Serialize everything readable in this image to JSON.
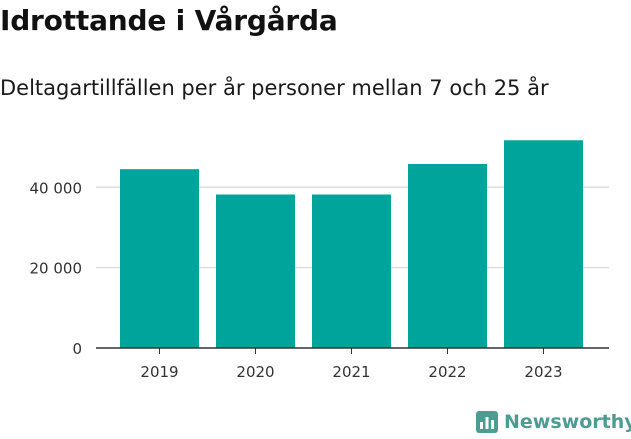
{
  "header": {
    "title": "Idrottande i Vårgårda",
    "subtitle": "Deltagartillfällen per år personer mellan 7 och 25 år"
  },
  "branding": {
    "name": "Newsworthy",
    "icon": "bar-chart-logo-icon",
    "color": "#4e9c91"
  },
  "colors": {
    "bar": "#00a49a",
    "grid": "#dddddd",
    "axis": "#333333",
    "text": "#333333"
  },
  "chart_data": {
    "type": "bar",
    "title": "Idrottande i Vårgårda",
    "subtitle": "Deltagartillfällen per år personer mellan 7 och 25 år",
    "xlabel": "",
    "ylabel": "",
    "categories": [
      "2019",
      "2020",
      "2021",
      "2022",
      "2023"
    ],
    "values": [
      44500,
      38200,
      38200,
      45800,
      51700
    ],
    "ylim": [
      0,
      55000
    ],
    "yticks": [
      0,
      20000,
      40000
    ],
    "ytick_labels": [
      "0",
      "20 000",
      "40 000"
    ],
    "grid": true,
    "legend": "none"
  }
}
